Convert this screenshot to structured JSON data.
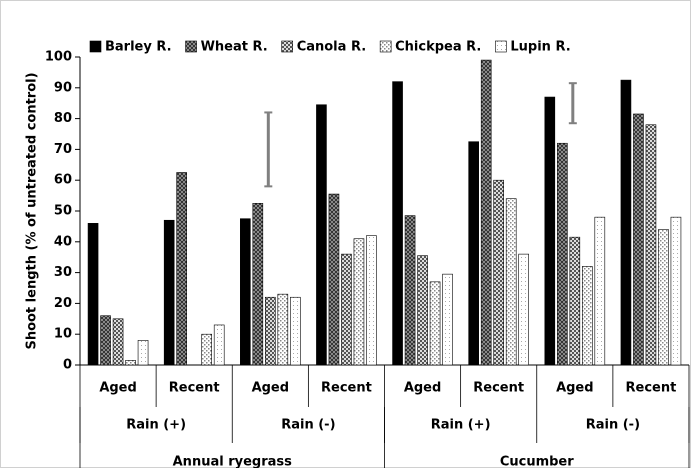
{
  "chart_data": {
    "type": "bar",
    "y_label": "Shoot length (% of untreated control)",
    "categories": [
      "Aged",
      "Recent",
      "Aged",
      "Recent",
      "Aged",
      "Recent",
      "Aged",
      "Recent"
    ],
    "category_levels": [
      [
        "Rain (+)",
        "Rain (-)",
        "Rain (+)",
        "Rain (-)"
      ],
      [
        "Annual ryegrass",
        "Cucumber"
      ]
    ],
    "series": [
      {
        "name": "Barley R.",
        "color": "#000000",
        "values": [
          46,
          47,
          47.5,
          84.5,
          92,
          72.5,
          87,
          92.5
        ]
      },
      {
        "name": "Wheat R.",
        "color": "#333333",
        "values": [
          16,
          62.5,
          52.5,
          55.5,
          48.5,
          99,
          72,
          81.5
        ]
      },
      {
        "name": "Canola R.",
        "color": "#555555",
        "values": [
          15,
          0,
          22,
          36,
          35.5,
          60,
          41.5,
          78
        ]
      },
      {
        "name": "Chickpea R.",
        "color": "#888888",
        "values": [
          1.5,
          10,
          23,
          41,
          27,
          54,
          32,
          44
        ]
      },
      {
        "name": "Lupin R.",
        "color": "#aaaaaa",
        "values": [
          8,
          13,
          22,
          42,
          29.5,
          36,
          48,
          48
        ]
      }
    ],
    "error_bars": [
      null,
      null,
      {
        "low": 58,
        "high": 82
      },
      null,
      null,
      null,
      {
        "low": 78.5,
        "high": 91.5
      },
      null
    ],
    "error_bar_color": "#808080",
    "ylim": [
      0,
      100
    ],
    "yticks": [
      0,
      10,
      20,
      30,
      40,
      50,
      60,
      70,
      80,
      90,
      100
    ],
    "grid": false,
    "legend": "top"
  }
}
